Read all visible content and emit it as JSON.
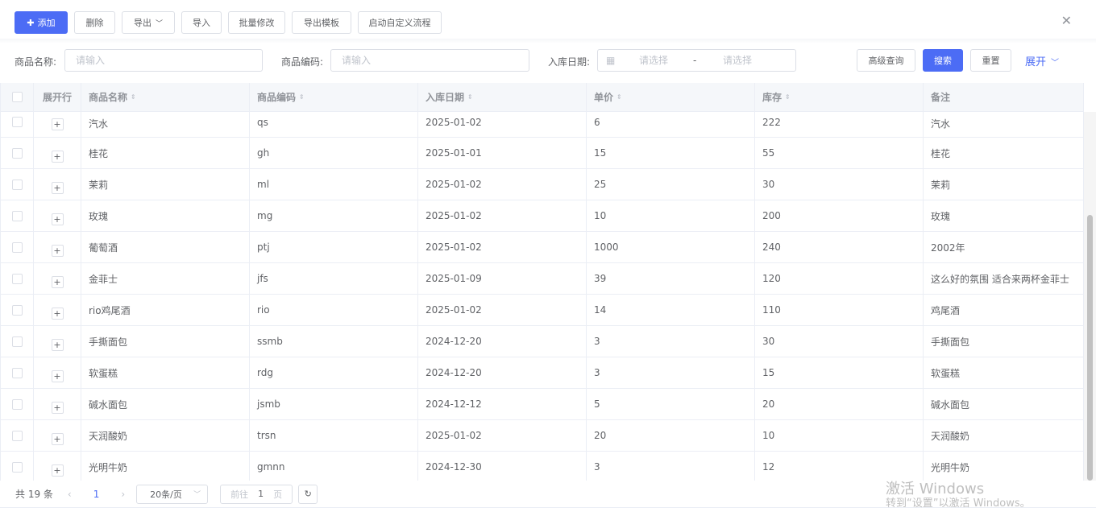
{
  "toolbar": {
    "add": "添加",
    "delete": "删除",
    "export": "导出",
    "import": "导入",
    "batch_edit": "批量修改",
    "export_template": "导出模板",
    "start_flow": "启动自定义流程"
  },
  "search": {
    "name_label": "商品名称:",
    "name_placeholder": "请输入",
    "code_label": "商品编码:",
    "code_placeholder": "请输入",
    "date_label": "入库日期:",
    "date_start_placeholder": "请选择",
    "date_sep": "-",
    "date_end_placeholder": "请选择",
    "advanced": "高级查询",
    "search": "搜索",
    "reset": "重置",
    "expand": "展开"
  },
  "table": {
    "headers": [
      "展开行",
      "商品名称",
      "商品编码",
      "入库日期",
      "单价",
      "库存",
      "备注"
    ],
    "rows": [
      [
        "汽水",
        "qs",
        "2025-01-02",
        "6",
        "222",
        "汽水"
      ],
      [
        "桂花",
        "gh",
        "2025-01-01",
        "15",
        "55",
        "桂花"
      ],
      [
        "茉莉",
        "ml",
        "2025-01-02",
        "25",
        "30",
        "茉莉"
      ],
      [
        "玫瑰",
        "mg",
        "2025-01-02",
        "10",
        "200",
        "玫瑰"
      ],
      [
        "葡萄酒",
        "ptj",
        "2025-01-02",
        "1000",
        "240",
        "2002年"
      ],
      [
        "金菲士",
        "jfs",
        "2025-01-09",
        "39",
        "120",
        "这么好的氛围 适合来两杯金菲士"
      ],
      [
        "rio鸡尾酒",
        "rio",
        "2025-01-02",
        "14",
        "110",
        "鸡尾酒"
      ],
      [
        "手撕面包",
        "ssmb",
        "2024-12-20",
        "3",
        "30",
        "手撕面包"
      ],
      [
        "软蛋糕",
        "rdg",
        "2024-12-20",
        "3",
        "15",
        "软蛋糕"
      ],
      [
        "碱水面包",
        "jsmb",
        "2024-12-12",
        "5",
        "20",
        "碱水面包"
      ],
      [
        "天润酸奶",
        "trsn",
        "2025-01-02",
        "20",
        "10",
        "天润酸奶"
      ],
      [
        "光明牛奶",
        "gmnn",
        "2024-12-30",
        "3",
        "12",
        "光明牛奶"
      ]
    ]
  },
  "pagination": {
    "total": "共 19 条",
    "current": "1",
    "page_size": "20条/页",
    "goto_prefix": "前往",
    "goto_value": "1",
    "goto_suffix": "页"
  },
  "watermark": {
    "line1": "激活 Windows",
    "line2": "转到“设置”以激活 Windows。"
  },
  "colors": {
    "primary": "#4c6cf5"
  }
}
